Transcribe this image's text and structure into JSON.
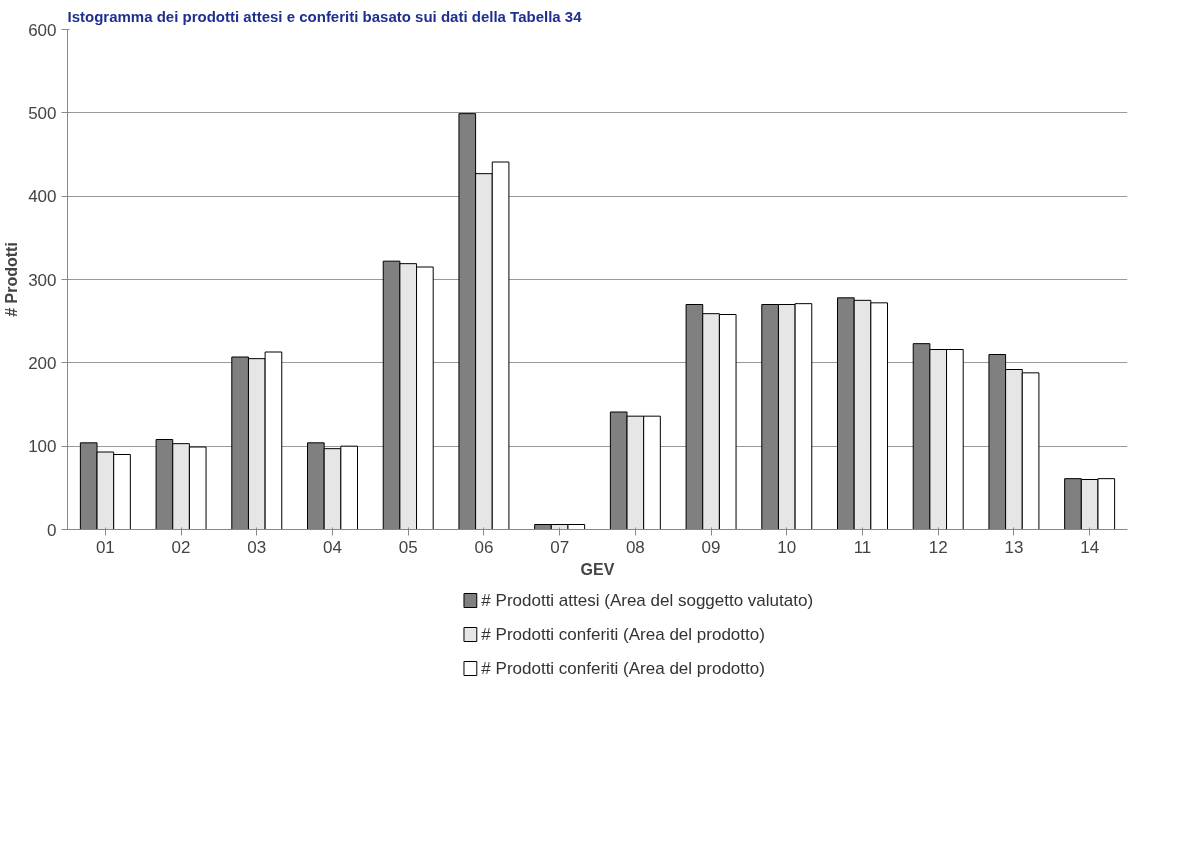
{
  "chart_data": {
    "type": "bar",
    "title": "Istogramma dei prodotti attesi e conferiti basato sui dati della Tabella 34",
    "xlabel": "GEV",
    "ylabel": "# Prodotti",
    "categories": [
      "01",
      "02",
      "03",
      "04",
      "05",
      "06",
      "07",
      "08",
      "09",
      "10",
      "11",
      "12",
      "13",
      "14"
    ],
    "series": [
      {
        "name": "# Prodotti attesi (Area del soggetto valutato)",
        "color": "#808080",
        "values": [
          104,
          108,
          207,
          104,
          322,
          499,
          6,
          141,
          270,
          270,
          278,
          223,
          210,
          61
        ]
      },
      {
        "name": "# Prodotti conferiti (Area del prodotto)",
        "color": "#e6e6e6",
        "values": [
          93,
          103,
          205,
          97,
          319,
          427,
          6,
          136,
          259,
          270,
          275,
          216,
          192,
          60
        ]
      },
      {
        "name": "# Prodotti conferiti (Area del prodotto)",
        "color": "#ffffff",
        "values": [
          90,
          99,
          213,
          100,
          315,
          441,
          6,
          136,
          258,
          271,
          272,
          216,
          188,
          61
        ]
      }
    ],
    "ylim": [
      0,
      600
    ],
    "yticks": [
      0,
      100,
      200,
      300,
      400,
      500,
      600
    ],
    "grid": "y",
    "legend": "bottom"
  }
}
